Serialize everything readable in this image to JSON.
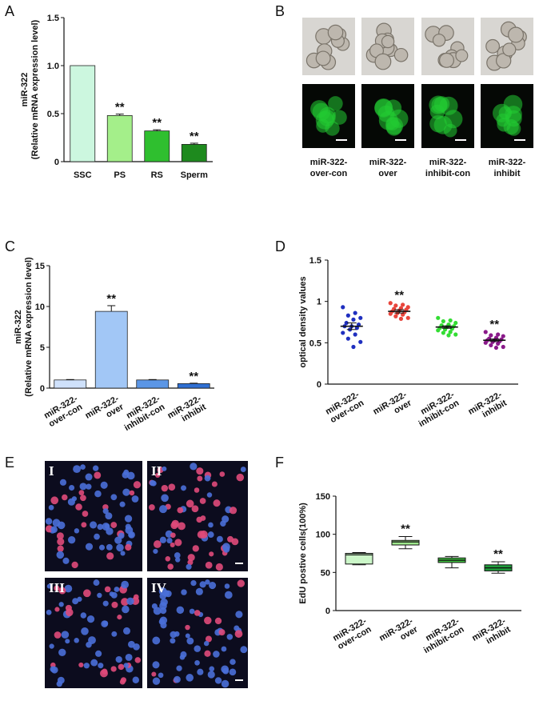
{
  "panels": {
    "A": "A",
    "B": "B",
    "C": "C",
    "D": "D",
    "E": "E",
    "F": "F"
  },
  "micro": {
    "captions": [
      "miR-322-\nover-con",
      "miR-322-\nover",
      "miR-322-\ninhibit-con",
      "miR-322-\ninhibit"
    ],
    "fluor_green": "#22cc33"
  },
  "edu": {
    "roman": [
      "I",
      "II",
      "III",
      "IV"
    ],
    "nucleus_blue": "#4a6fd8",
    "nucleus_pink": "#e04a7a",
    "background": "#0c0c1e"
  },
  "chart_data": [
    {
      "id": "A",
      "type": "bar",
      "ylabel": [
        "miR-322",
        "(Relative mRNA expression level)"
      ],
      "categories": [
        "SSC",
        "PS",
        "RS",
        "Sperm"
      ],
      "values": [
        1.0,
        0.48,
        0.32,
        0.18
      ],
      "errors": [
        0.0,
        0.015,
        0.012,
        0.012
      ],
      "colors": [
        "#ccf7df",
        "#a4ef8a",
        "#2fbf2f",
        "#1e8a1e"
      ],
      "significance": [
        "",
        "**",
        "**",
        "**"
      ],
      "ylim": [
        0,
        1.5
      ],
      "yticks": [
        "0",
        "0.5",
        "1.0",
        "1.5"
      ],
      "ytick_values": [
        0,
        0.5,
        1.0,
        1.5
      ]
    },
    {
      "id": "C",
      "type": "bar",
      "ylabel": [
        "miR-322",
        "(Relative mRNA expression level)"
      ],
      "categories": [
        "miR-322-\nover-con",
        "miR-322-\nover",
        "miR-322-\ninhibit-con",
        "miR-322-\ninhibit"
      ],
      "values": [
        1.0,
        9.4,
        1.0,
        0.55
      ],
      "errors": [
        0.05,
        0.7,
        0.05,
        0.05
      ],
      "colors": [
        "#cfe1fb",
        "#a2c7f6",
        "#5b96e6",
        "#2f6fd3"
      ],
      "significance": [
        "",
        "**",
        "",
        "**"
      ],
      "ylim": [
        0,
        15
      ],
      "yticks": [
        "0",
        "5",
        "10",
        "15"
      ],
      "ytick_values": [
        0,
        5,
        10,
        15
      ]
    },
    {
      "id": "D",
      "type": "scatter",
      "ylabel": [
        "optical density values"
      ],
      "categories": [
        "miR-322-\nover-con",
        "miR-322-\nover",
        "miR-322-\ninhibit-con",
        "miR-322-\ninhibit"
      ],
      "series": [
        {
          "color": "#1f2fbf",
          "mean": 0.7,
          "sem": 0.04,
          "values": [
            0.93,
            0.86,
            0.83,
            0.8,
            0.78,
            0.74,
            0.72,
            0.7,
            0.7,
            0.68,
            0.66,
            0.62,
            0.6,
            0.55,
            0.51,
            0.45
          ]
        },
        {
          "color": "#e8453c",
          "mean": 0.88,
          "sem": 0.02,
          "values": [
            0.98,
            0.96,
            0.95,
            0.93,
            0.92,
            0.91,
            0.9,
            0.89,
            0.88,
            0.87,
            0.86,
            0.85,
            0.84,
            0.82,
            0.8,
            0.79
          ]
        },
        {
          "color": "#33dd33",
          "mean": 0.69,
          "sem": 0.015,
          "values": [
            0.8,
            0.77,
            0.76,
            0.74,
            0.72,
            0.71,
            0.7,
            0.69,
            0.68,
            0.67,
            0.66,
            0.65,
            0.63,
            0.62,
            0.6,
            0.59
          ]
        },
        {
          "color": "#8a1a8a",
          "mean": 0.53,
          "sem": 0.015,
          "values": [
            0.63,
            0.6,
            0.59,
            0.58,
            0.56,
            0.55,
            0.54,
            0.53,
            0.53,
            0.52,
            0.51,
            0.5,
            0.49,
            0.47,
            0.45,
            0.44
          ]
        }
      ],
      "significance": [
        "",
        "**",
        "",
        "**"
      ],
      "ylim": [
        0,
        1.5
      ],
      "yticks": [
        "0",
        "0.5",
        "1",
        "1.5"
      ],
      "ytick_values": [
        0,
        0.5,
        1,
        1.5
      ]
    },
    {
      "id": "F",
      "type": "box",
      "ylabel": [
        "EdU postive cells(100%)"
      ],
      "categories": [
        "miR-322-\nover-con",
        "miR-322-\nover",
        "miR-322-\ninhibit-con",
        "miR-322-\ninhibit"
      ],
      "boxes": [
        {
          "min": 60,
          "q1": 61,
          "median": 73,
          "q3": 75,
          "max": 76,
          "color": "#ccf7c9"
        },
        {
          "min": 81,
          "q1": 86,
          "median": 90,
          "q3": 92,
          "max": 97,
          "color": "#9ee88c"
        },
        {
          "min": 56,
          "q1": 63,
          "median": 66,
          "q3": 69,
          "max": 71,
          "color": "#40c040"
        },
        {
          "min": 49,
          "q1": 52,
          "median": 56,
          "q3": 60,
          "max": 64,
          "color": "#1f9a3a"
        }
      ],
      "significance": [
        "",
        "**",
        "",
        "**"
      ],
      "ylim": [
        0,
        150
      ],
      "yticks": [
        "0",
        "50",
        "100",
        "150"
      ],
      "ytick_values": [
        0,
        50,
        100,
        150
      ]
    }
  ]
}
